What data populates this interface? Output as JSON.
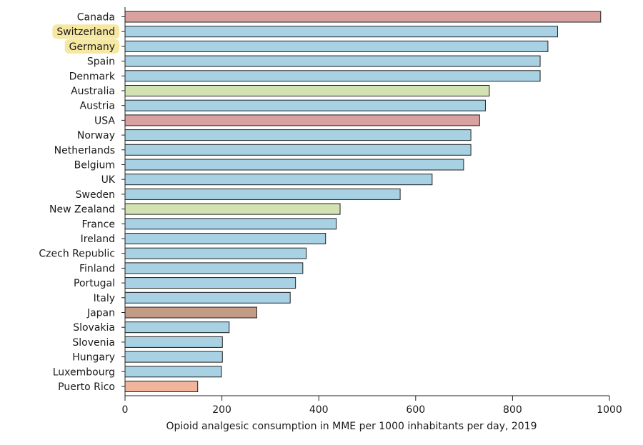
{
  "chart_data": {
    "type": "bar",
    "orientation": "horizontal",
    "title": "",
    "xlabel": "Opioid analgesic consumption in MME per 1000 inhabitants per day, 2019",
    "ylabel": "",
    "xlim": [
      0,
      1000
    ],
    "xticks": [
      0,
      200,
      400,
      600,
      800,
      1000
    ],
    "grid": false,
    "categories": [
      "Canada",
      "Switzerland",
      "Germany",
      "Spain",
      "Denmark",
      "Australia",
      "Austria",
      "USA",
      "Norway",
      "Netherlands",
      "Belgium",
      "UK",
      "Sweden",
      "New Zealand",
      "France",
      "Ireland",
      "Czech Republic",
      "Finland",
      "Portugal",
      "Italy",
      "Japan",
      "Slovakia",
      "Slovenia",
      "Hungary",
      "Luxembourg",
      "Puerto Rico"
    ],
    "values": [
      982,
      893,
      873,
      857,
      857,
      752,
      744,
      732,
      714,
      714,
      699,
      634,
      568,
      444,
      436,
      414,
      374,
      367,
      352,
      341,
      272,
      215,
      201,
      201,
      199,
      150
    ],
    "bar_colors": [
      "#d9a1a0",
      "#a8d2e4",
      "#a8d2e4",
      "#a8d2e4",
      "#a8d2e4",
      "#d3e2b2",
      "#a8d2e4",
      "#d9a1a0",
      "#a8d2e4",
      "#a8d2e4",
      "#a8d2e4",
      "#a8d2e4",
      "#a8d2e4",
      "#d3e2b2",
      "#a8d2e4",
      "#a8d2e4",
      "#a8d2e4",
      "#a8d2e4",
      "#a8d2e4",
      "#a8d2e4",
      "#c29c85",
      "#a8d2e4",
      "#a8d2e4",
      "#a8d2e4",
      "#a8d2e4",
      "#f1b59b"
    ],
    "highlighted_labels": [
      "Switzerland",
      "Germany"
    ],
    "highlight_color": "#f6e7a1"
  }
}
